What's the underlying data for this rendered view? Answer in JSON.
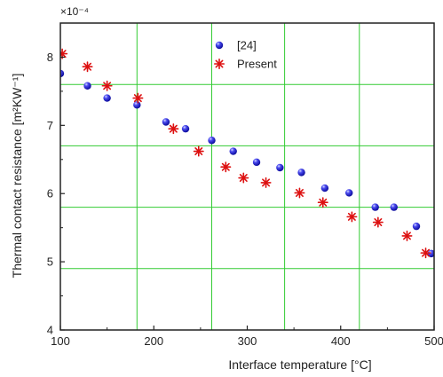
{
  "chart_data": {
    "type": "scatter",
    "xlabel": "Interface temperature [°C]",
    "ylabel": "Thermal contact resistance [m²KW⁻¹]",
    "xlim": [
      100,
      500
    ],
    "ylim": [
      4,
      8.5
    ],
    "x_ticks": [
      100,
      200,
      300,
      400,
      500
    ],
    "y_ticks": [
      4,
      5,
      6,
      7,
      8
    ],
    "y_multiplier": "×10⁻⁴",
    "grid": true,
    "grid_color": "#33cc33",
    "grid_x": [
      182,
      262,
      340,
      420
    ],
    "grid_y": [
      4.9,
      5.8,
      6.7,
      7.6
    ],
    "legend_position": "top-center",
    "series": [
      {
        "name": "[24]",
        "marker": "sphere",
        "color": "#1a1adc",
        "x": [
          100,
          129,
          150,
          182,
          213,
          234,
          262,
          285,
          310,
          335,
          358,
          383,
          409,
          437,
          457,
          481,
          497
        ],
        "y": [
          7.76,
          7.58,
          7.4,
          7.3,
          7.05,
          6.95,
          6.78,
          6.62,
          6.46,
          6.38,
          6.31,
          6.08,
          6.01,
          5.8,
          5.8,
          5.52,
          5.12
        ]
      },
      {
        "name": "Present",
        "marker": "asterisk",
        "color": "#dd1111",
        "x": [
          102,
          129,
          150,
          183,
          221,
          248,
          277,
          296,
          320,
          356,
          381,
          412,
          440,
          471,
          491
        ],
        "y": [
          8.05,
          7.86,
          7.58,
          7.4,
          6.95,
          6.62,
          6.39,
          6.23,
          6.16,
          6.01,
          5.87,
          5.66,
          5.58,
          5.38,
          5.13
        ]
      }
    ]
  }
}
